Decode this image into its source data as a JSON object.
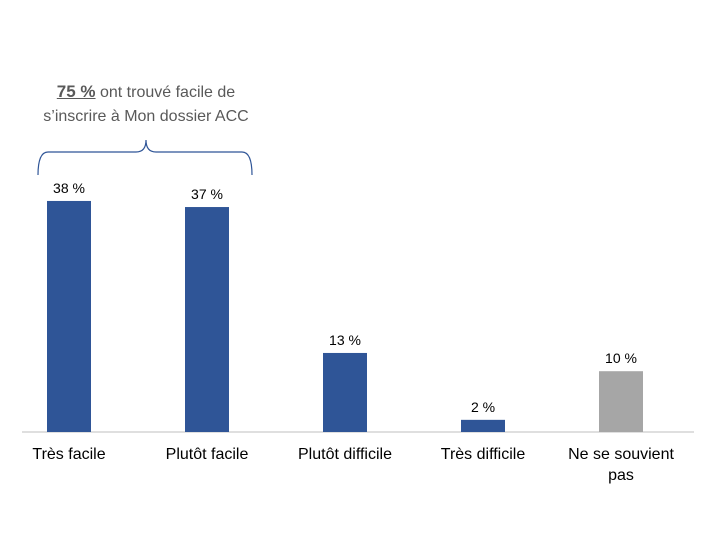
{
  "annotation": {
    "highlight": "75 %",
    "line1_rest": " ont trouvé facile de",
    "line2": "s’inscrire à Mon dossier ACC"
  },
  "chart_data": {
    "type": "bar",
    "title": "",
    "xlabel": "",
    "ylabel": "",
    "ylim": [
      0,
      40
    ],
    "grid": false,
    "categories": [
      "Très facile",
      "Plutôt facile",
      "Plutôt difficile",
      "Très difficile",
      "Ne se souvient pas"
    ],
    "values": [
      38,
      37,
      13,
      2,
      10
    ],
    "data_labels": [
      "38 %",
      "37 %",
      "13 %",
      "2 %",
      "10 %"
    ],
    "colors": [
      "#2F5597",
      "#2F5597",
      "#2F5597",
      "#2F5597",
      "#A6A6A6"
    ],
    "bracket_color": "#2F5597"
  }
}
